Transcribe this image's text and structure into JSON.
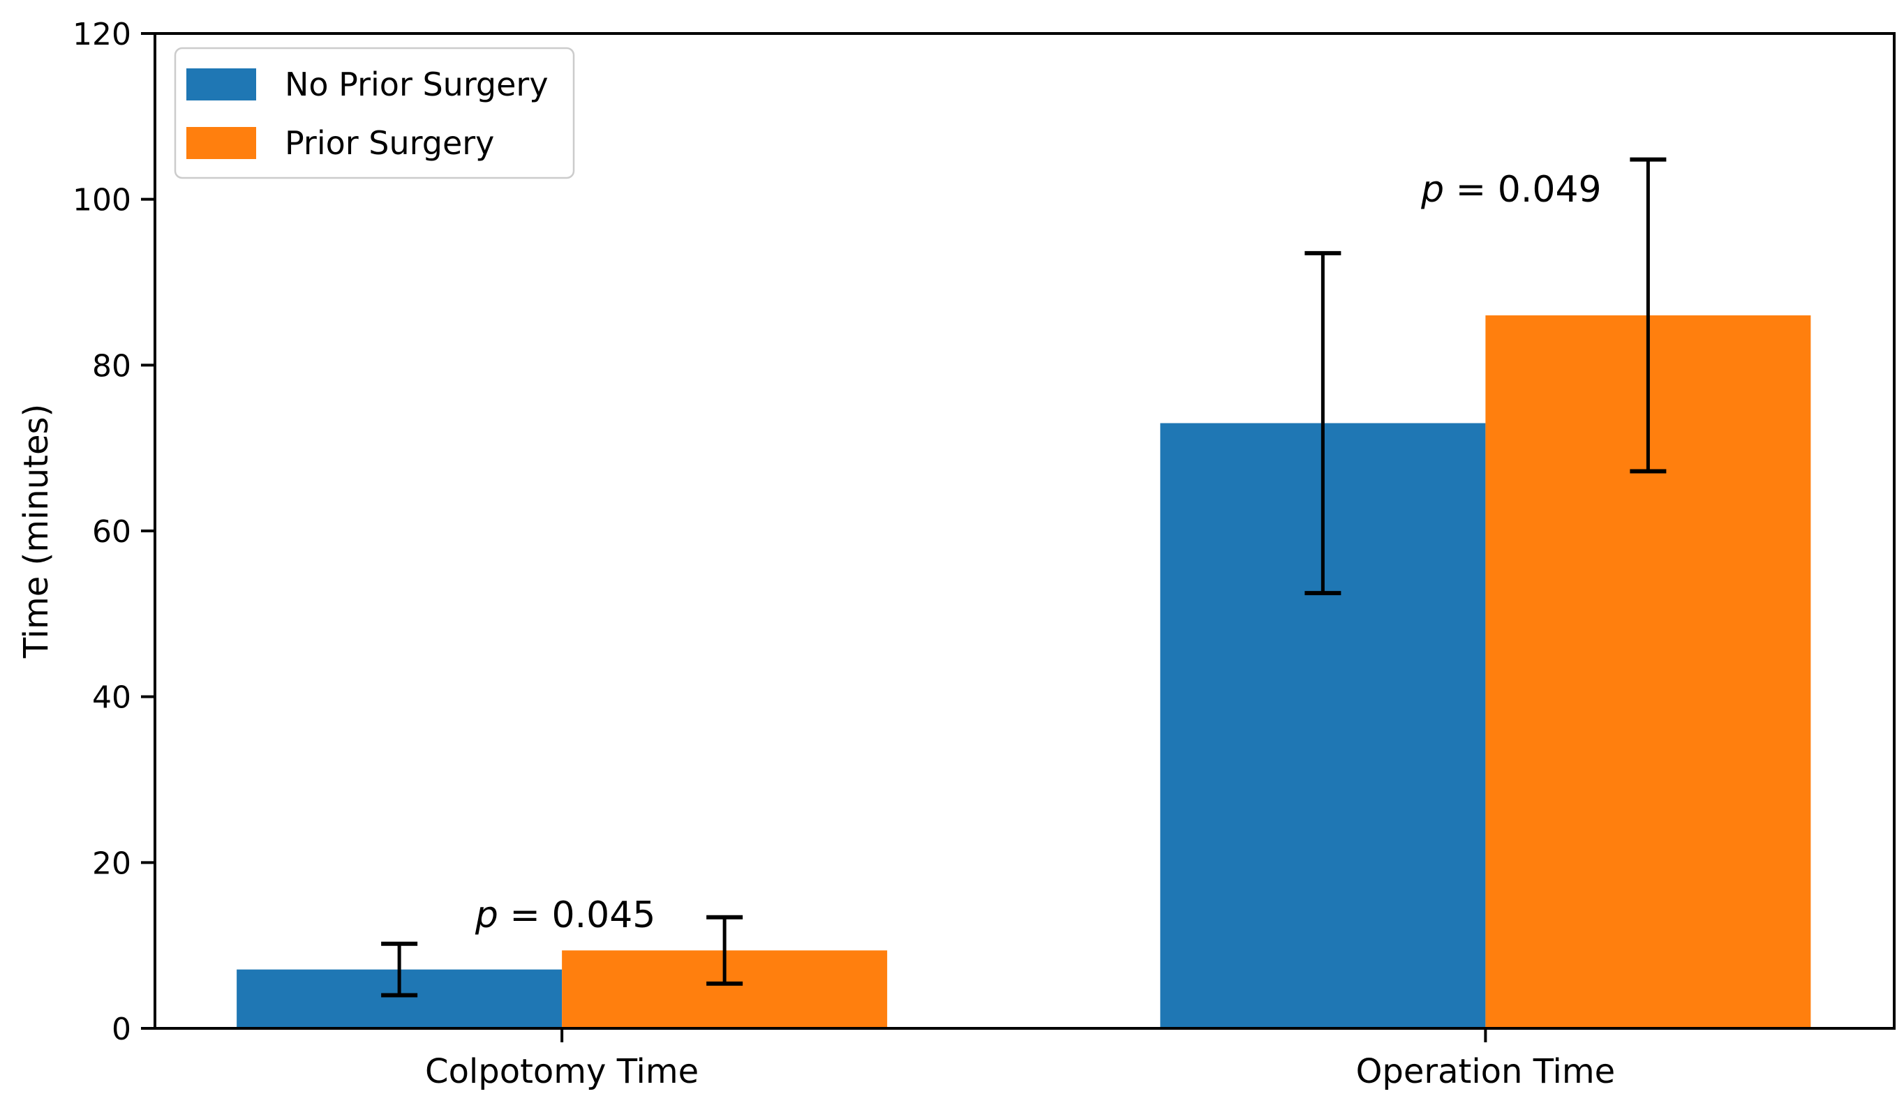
{
  "chart_data": {
    "type": "bar",
    "title": "",
    "xlabel": "",
    "ylabel": "Time (minutes)",
    "ylim": [
      0,
      120
    ],
    "yticks": [
      0,
      20,
      40,
      60,
      80,
      100,
      120
    ],
    "grid": false,
    "background_color": "#ffffff",
    "axis_color": "#000000",
    "error_bar_color": "#000000",
    "categories": [
      "Colpotomy Time",
      "Operation Time"
    ],
    "series": [
      {
        "name": "No Prior Surgery",
        "color": "#1f77b4",
        "values": [
          7.1,
          73.0
        ],
        "errors": [
          3.1,
          20.5
        ]
      },
      {
        "name": "Prior Surgery",
        "color": "#ff7f0e",
        "values": [
          9.4,
          86.0
        ],
        "errors": [
          4.0,
          18.8
        ]
      }
    ],
    "annotations": [
      {
        "text": "p = 0.045",
        "italic_part": "p",
        "rest_part": " = 0.045",
        "category_index": 0,
        "y_value": 12.2,
        "x_offset": 5
      },
      {
        "text": "p = 0.049",
        "italic_part": "p",
        "rest_part": " = 0.049",
        "category_index": 1,
        "y_value": 99.7,
        "x_offset": 37
      }
    ],
    "legend": {
      "position": "upper-left",
      "entries": [
        {
          "label": "No Prior Surgery",
          "color": "#1f77b4"
        },
        {
          "label": "Prior Surgery",
          "color": "#ff7f0e"
        }
      ]
    },
    "layout_hints": {
      "group_center_fracs": [
        0.234,
        0.765
      ],
      "bar_width_frac": 0.187,
      "legend_border_color": "#cccccc"
    }
  }
}
